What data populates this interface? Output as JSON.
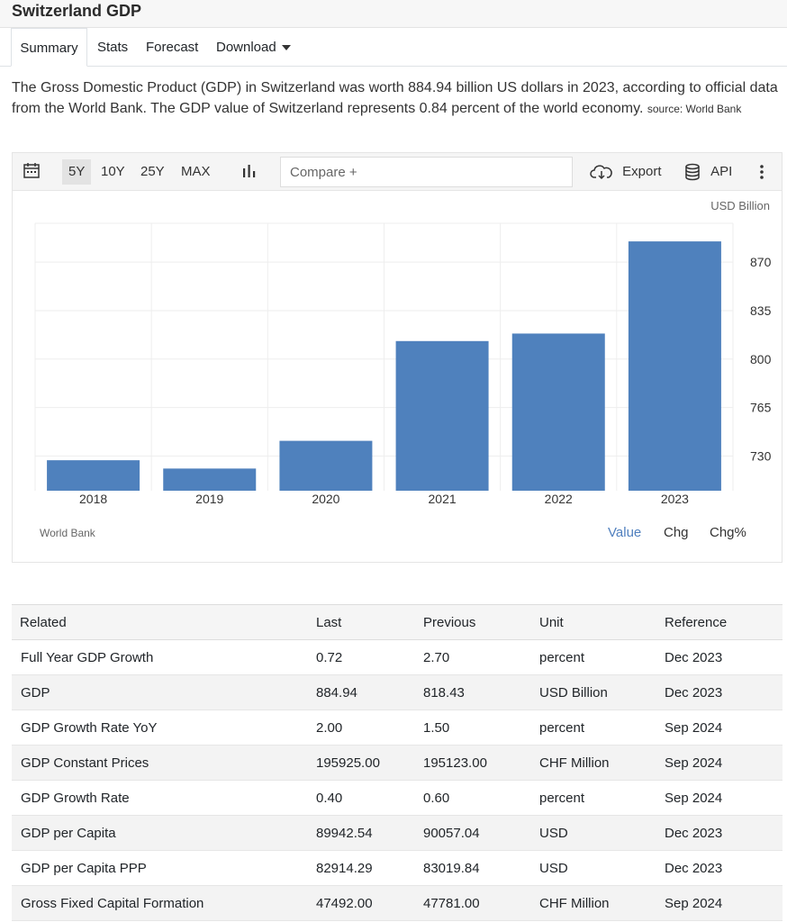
{
  "header": {
    "title": "Switzerland GDP"
  },
  "tabs": [
    {
      "label": "Summary"
    },
    {
      "label": "Stats"
    },
    {
      "label": "Forecast"
    },
    {
      "label": "Download"
    }
  ],
  "description": {
    "text": "The Gross Domestic Product (GDP) in Switzerland was worth 884.94 billion US dollars in 2023, according to official data from the World Bank. The GDP value of Switzerland represents 0.84 percent of the world economy.",
    "source": "source: World Bank"
  },
  "toolbar": {
    "calendar_icon": "calendar-icon",
    "ranges": [
      "5Y",
      "10Y",
      "25Y",
      "MAX"
    ],
    "selected_range": "5Y",
    "chart_type_icon": "bar-chart-icon",
    "compare_placeholder": "Compare +",
    "export_label": "Export",
    "export_icon": "cloud-download-icon",
    "api_label": "API",
    "api_icon": "database-icon",
    "more_icon": "vertical-ellipsis-icon"
  },
  "chart_data": {
    "type": "bar",
    "categories": [
      "2018",
      "2019",
      "2020",
      "2021",
      "2022",
      "2023"
    ],
    "values": [
      727.0,
      721.0,
      741.0,
      813.0,
      818.43,
      884.94
    ],
    "unit_label": "USD Billion",
    "y_ticks": [
      730,
      765,
      800,
      835,
      870
    ],
    "ylim": [
      705,
      898
    ],
    "bar_color": "#4f81bd",
    "grid": true,
    "y_axis_side": "right",
    "source": "World Bank"
  },
  "chart_modes": [
    "Value",
    "Chg",
    "Chg%"
  ],
  "active_mode": "Value",
  "related_table": {
    "headers": [
      "Related",
      "Last",
      "Previous",
      "Unit",
      "Reference"
    ],
    "rows": [
      [
        "Full Year GDP Growth",
        "0.72",
        "2.70",
        "percent",
        "Dec 2023"
      ],
      [
        "GDP",
        "884.94",
        "818.43",
        "USD Billion",
        "Dec 2023"
      ],
      [
        "GDP Growth Rate YoY",
        "2.00",
        "1.50",
        "percent",
        "Sep 2024"
      ],
      [
        "GDP Constant Prices",
        "195925.00",
        "195123.00",
        "CHF Million",
        "Sep 2024"
      ],
      [
        "GDP Growth Rate",
        "0.40",
        "0.60",
        "percent",
        "Sep 2024"
      ],
      [
        "GDP per Capita",
        "89942.54",
        "90057.04",
        "USD",
        "Dec 2023"
      ],
      [
        "GDP per Capita PPP",
        "82914.29",
        "83019.84",
        "USD",
        "Dec 2023"
      ],
      [
        "Gross Fixed Capital Formation",
        "47492.00",
        "47781.00",
        "CHF Million",
        "Sep 2024"
      ]
    ]
  }
}
